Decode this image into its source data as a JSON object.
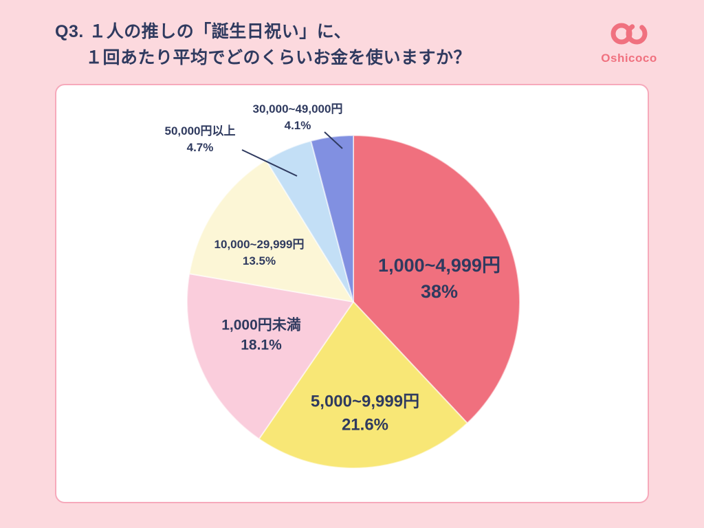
{
  "header": {
    "question_line1": "Q3. １人の推しの「誕生日祝い」に、",
    "question_line2": "１回あたり平均でどのくらいお金を使いますか？"
  },
  "logo": {
    "text": "Oshicoco"
  },
  "colors": {
    "background": "#FCD9DE",
    "card_border": "#F6A9BB",
    "text_dark": "#2F3A5F",
    "brand_pink": "#F0717F"
  },
  "chart_data": {
    "type": "pie",
    "title": "Q3. １人の推しの「誕生日祝い」に、１回あたり平均でどのくらいお金を使いますか？",
    "start_angle_deg": -90,
    "direction": "clockwise",
    "unit": "%",
    "slices": [
      {
        "label": "1,000~4,999円",
        "value": 38,
        "pct_label": "38%",
        "color": "#F0707E",
        "label_placement": "inside"
      },
      {
        "label": "5,000~9,999円",
        "value": 21.6,
        "pct_label": "21.6%",
        "color": "#F8E776",
        "label_placement": "inside"
      },
      {
        "label": "1,000円未満",
        "value": 18.1,
        "pct_label": "18.1%",
        "color": "#FACDDC",
        "label_placement": "inside"
      },
      {
        "label": "10,000~29,999円",
        "value": 13.5,
        "pct_label": "13.5%",
        "color": "#FCF6D6",
        "label_placement": "inside"
      },
      {
        "label": "50,000円以上",
        "value": 4.7,
        "pct_label": "4.7%",
        "color": "#C3DFF6",
        "label_placement": "outside"
      },
      {
        "label": "30,000~49,000円",
        "value": 4.1,
        "pct_label": "4.1%",
        "color": "#8190E1",
        "label_placement": "outside"
      }
    ]
  }
}
